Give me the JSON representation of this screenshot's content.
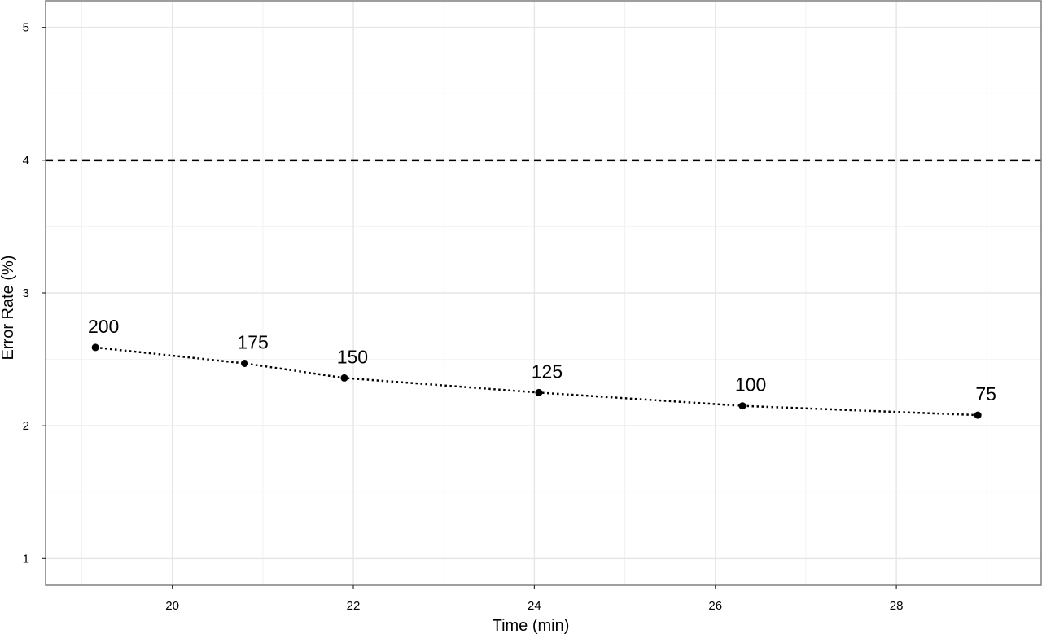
{
  "chart_data": {
    "type": "line",
    "title": "",
    "xlabel": "Time (min)",
    "ylabel": "Error Rate (%)",
    "xlim": [
      18.6,
      29.6
    ],
    "ylim": [
      0.8,
      5.2
    ],
    "x_ticks": [
      20,
      22,
      24,
      26,
      28
    ],
    "y_ticks": [
      1,
      2,
      3,
      4,
      5
    ],
    "x_tick_labels": [
      "20",
      "22",
      "24",
      "26",
      "28"
    ],
    "y_tick_labels": [
      "1",
      "2",
      "3",
      "4",
      "5"
    ],
    "grid": true,
    "legend": "none",
    "reference_line": {
      "y": 4.0,
      "style": "dashed"
    },
    "series": [
      {
        "x": [
          19.15,
          20.8,
          21.9,
          24.05,
          26.3,
          28.9
        ],
        "y": [
          2.59,
          2.47,
          2.36,
          2.25,
          2.15,
          2.08
        ],
        "point_labels": [
          "200",
          "175",
          "150",
          "125",
          "100",
          "75"
        ]
      }
    ]
  }
}
